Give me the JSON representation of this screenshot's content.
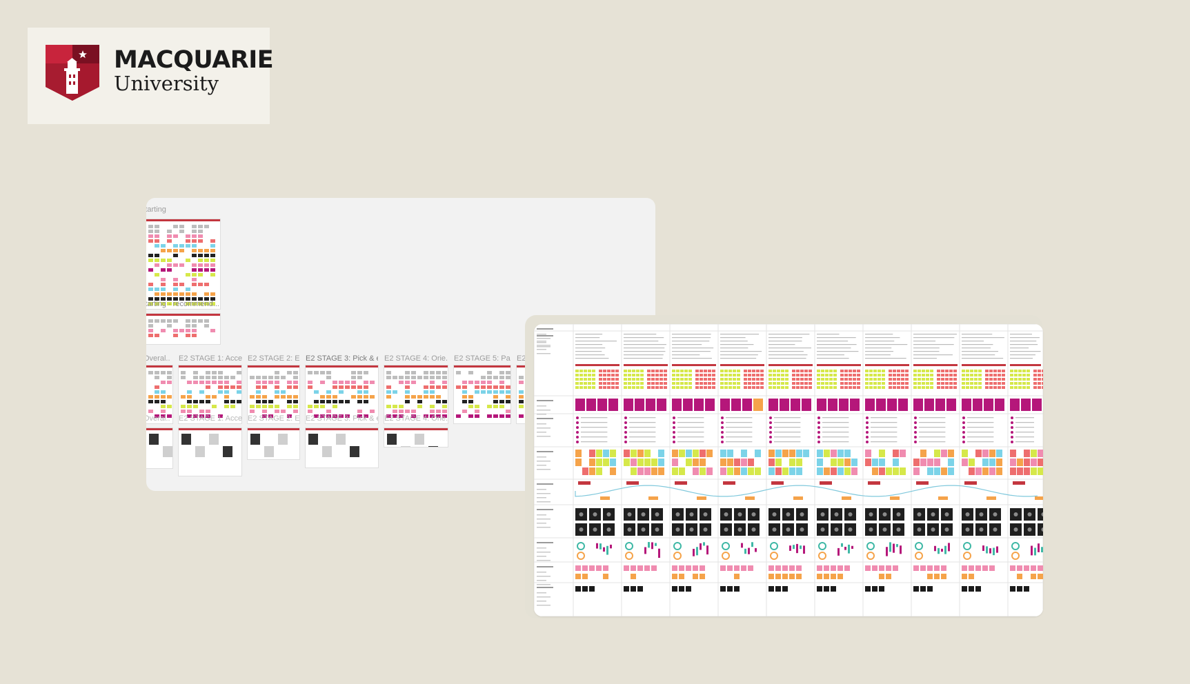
{
  "logo": {
    "line1": "MACQUARIE",
    "line2": "University"
  },
  "board": {
    "labels": {
      "starting": "Starting",
      "starting_recommend": "Starting - recommend...",
      "overall": "Overal...",
      "stage1": "E2 STAGE 1: Acce...",
      "stage2": "E2 STAGE 2: E...",
      "stage3": "E2 STAGE 3: Pick & e...",
      "stage4": "E2 STAGE 4: Orie...",
      "stage5": "E2 STAGE 5: Pa...",
      "stage_more": "E2"
    },
    "ghost_labels": {
      "overall": "Overal...",
      "stage1": "E2 STAGE 1: Acce...",
      "stage2": "E2 STAGE 2: E...",
      "stage3": "E2 STAGE 3: Pick & e...",
      "stage4": "E2 STAGE 4: Orie..."
    }
  },
  "colors": {
    "background": "#e6e2d6",
    "brand_red": "#a6192e",
    "accent_red": "#c3363f",
    "magenta": "#b5177a",
    "lime": "#d6e84a",
    "pink": "#f08cb0",
    "salmon": "#ee6e6e",
    "cyan": "#7cd3e8",
    "orange": "#f5a34a",
    "teal": "#3fb8a6"
  }
}
